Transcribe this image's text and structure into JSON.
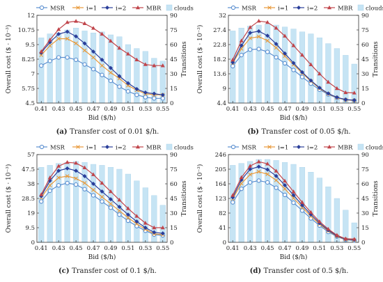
{
  "figure": {
    "series_styles": [
      {
        "key": "MSR",
        "color": "#5b8fd0",
        "marker": "circle-open"
      },
      {
        "key": "i=1",
        "color": "#e8993a",
        "marker": "cross"
      },
      {
        "key": "i=2",
        "color": "#2a3e9a",
        "marker": "diamond"
      },
      {
        "key": "MBR",
        "color": "#c0444a",
        "marker": "triangle"
      },
      {
        "key": "clouds",
        "color": "#bfe0f2",
        "marker": "bar"
      }
    ],
    "bar_color": "#c6e4f4",
    "bar_stroke": "#a9d2ea"
  },
  "chart_data": [
    {
      "id": "a",
      "type": "line",
      "caption_label": "(a)",
      "caption_text": "Transfer cost of 0.01 $/h.",
      "xlabel": "Bid ($/h)",
      "ylabel": "Overall cost ($ · 10⁻³)",
      "y2label": "Transitions",
      "x_ticks": [
        "0.41",
        "0.43",
        "0.45",
        "0.47",
        "0.49",
        "0.51",
        "0.53",
        "0.55"
      ],
      "ylim": [
        4.5,
        12
      ],
      "y_ticks": [
        "4.5",
        "5.75",
        "7",
        "8.25",
        "9.5",
        "10.75",
        "12"
      ],
      "y2lim": [
        0,
        90
      ],
      "y2_ticks": [
        "0",
        "15",
        "30",
        "45",
        "60",
        "75",
        "90"
      ],
      "x": [
        0.41,
        0.42,
        0.43,
        0.44,
        0.45,
        0.46,
        0.47,
        0.48,
        0.49,
        0.5,
        0.51,
        0.52,
        0.53,
        0.54,
        0.55
      ],
      "series": [
        {
          "name": "MSR",
          "values": [
            7.7,
            8.1,
            8.4,
            8.4,
            8.2,
            7.8,
            7.4,
            6.9,
            6.4,
            5.9,
            5.5,
            5.2,
            5.0,
            4.9,
            4.9
          ]
        },
        {
          "name": "i=1",
          "values": [
            8.6,
            9.4,
            10.0,
            10.0,
            9.6,
            9.0,
            8.4,
            7.7,
            7.1,
            6.6,
            6.0,
            5.6,
            5.3,
            5.2,
            5.2
          ]
        },
        {
          "name": "i=2",
          "values": [
            8.8,
            9.7,
            10.4,
            10.6,
            10.2,
            9.6,
            8.9,
            8.2,
            7.5,
            6.8,
            6.2,
            5.7,
            5.4,
            5.3,
            5.2
          ]
        },
        {
          "name": "MBR",
          "values": [
            8.9,
            9.9,
            10.8,
            11.4,
            11.5,
            11.3,
            10.9,
            10.4,
            9.8,
            9.2,
            8.7,
            8.2,
            7.8,
            7.7,
            7.7
          ]
        }
      ],
      "bars": {
        "name": "clouds",
        "values": [
          67,
          71,
          72,
          75,
          77,
          74,
          72,
          73,
          70,
          68,
          60,
          56,
          53,
          46,
          43
        ]
      }
    },
    {
      "id": "b",
      "type": "line",
      "caption_label": "(b)",
      "caption_text": "Transfer cost of 0.05 $/h.",
      "xlabel": "Bid ($/h)",
      "ylabel": "Overall cost ($ · 10⁻³)",
      "y2label": "Transitions",
      "x_ticks": [
        "0.41",
        "0.43",
        "0.45",
        "0.47",
        "0.49",
        "0.51",
        "0.53",
        "0.55"
      ],
      "ylim": [
        4.4,
        32
      ],
      "y_ticks": [
        "4.4",
        "9",
        "13.6",
        "18.2",
        "22.8",
        "27.4",
        "32"
      ],
      "y2lim": [
        0,
        90
      ],
      "y2_ticks": [
        "0",
        "15",
        "30",
        "45",
        "60",
        "75",
        "90"
      ],
      "x": [
        0.41,
        0.42,
        0.43,
        0.44,
        0.45,
        0.46,
        0.47,
        0.48,
        0.49,
        0.5,
        0.51,
        0.52,
        0.53,
        0.54,
        0.55
      ],
      "series": [
        {
          "name": "MSR",
          "values": [
            16.0,
            19.5,
            21.2,
            21.4,
            20.5,
            18.8,
            16.9,
            14.8,
            12.6,
            10.5,
            8.6,
            7.1,
            6.0,
            5.4,
            5.2
          ]
        },
        {
          "name": "i=1",
          "values": [
            17.0,
            21.5,
            24.8,
            25.3,
            24.0,
            21.8,
            19.2,
            16.5,
            13.8,
            11.3,
            9.0,
            7.3,
            6.1,
            5.4,
            5.2
          ]
        },
        {
          "name": "i=2",
          "values": [
            17.2,
            22.5,
            26.5,
            27.0,
            25.6,
            23.0,
            20.0,
            17.0,
            14.1,
            11.5,
            9.2,
            7.4,
            6.2,
            5.5,
            5.3
          ]
        },
        {
          "name": "MBR",
          "values": [
            18.0,
            24.0,
            28.2,
            30.2,
            29.8,
            28.0,
            25.5,
            22.5,
            19.5,
            16.5,
            13.6,
            11.0,
            9.0,
            7.7,
            7.6
          ]
        }
      ],
      "bars": {
        "name": "clouds",
        "values": [
          74,
          77,
          79,
          80,
          81,
          80,
          78,
          76,
          73,
          71,
          67,
          61,
          56,
          49,
          40
        ]
      }
    },
    {
      "id": "c",
      "type": "line",
      "caption_label": "(c)",
      "caption_text": "Transfer cost of 0.1 $/h.",
      "xlabel": "Bid ($/h)",
      "ylabel": "Overall cost ($ · 10⁻³)",
      "y2label": "Transitions",
      "x_ticks": [
        "0.41",
        "0.43",
        "0.45",
        "0.47",
        "0.49",
        "0.51",
        "0.53",
        "0.55"
      ],
      "ylim": [
        0,
        57
      ],
      "y_ticks": [
        "0",
        "9.5",
        "19",
        "28.5",
        "38",
        "47.5",
        "57"
      ],
      "y2lim": [
        0,
        90
      ],
      "y2_ticks": [
        "0",
        "15",
        "30",
        "45",
        "60",
        "75",
        "90"
      ],
      "x": [
        0.41,
        0.42,
        0.43,
        0.44,
        0.45,
        0.46,
        0.47,
        0.48,
        0.49,
        0.5,
        0.51,
        0.52,
        0.53,
        0.54,
        0.55
      ],
      "series": [
        {
          "name": "MSR",
          "values": [
            26.5,
            33.5,
            37.0,
            38.5,
            37.5,
            34.5,
            30.5,
            26.5,
            22.5,
            18.0,
            14.0,
            10.5,
            7.5,
            5.0,
            4.5
          ]
        },
        {
          "name": "i=1",
          "values": [
            29.0,
            37.0,
            42.0,
            43.0,
            41.5,
            38.5,
            34.0,
            29.5,
            25.0,
            20.5,
            16.0,
            12.0,
            8.5,
            5.5,
            5.0
          ]
        },
        {
          "name": "i=2",
          "values": [
            30.0,
            40.0,
            46.5,
            48.0,
            46.5,
            43.0,
            38.0,
            33.0,
            28.0,
            23.0,
            18.0,
            13.5,
            9.5,
            6.5,
            5.8
          ]
        },
        {
          "name": "MBR",
          "values": [
            31.0,
            42.0,
            49.5,
            52.0,
            51.5,
            48.5,
            44.0,
            38.5,
            33.0,
            27.5,
            22.0,
            17.0,
            12.5,
            9.5,
            9.5
          ]
        }
      ],
      "bars": {
        "name": "clouds",
        "values": [
          77,
          79,
          81,
          82,
          83,
          82,
          80,
          79,
          77,
          75,
          70,
          63,
          56,
          48,
          38
        ]
      }
    },
    {
      "id": "d",
      "type": "line",
      "caption_label": "(d)",
      "caption_text": "Transfer cost of 0.5 $/h.",
      "xlabel": "Bid ($/h)",
      "ylabel": "Overall cost ($ · 10⁻³)",
      "y2label": "Transitions",
      "x_ticks": [
        "0.41",
        "0.43",
        "0.45",
        "0.47",
        "0.49",
        "0.51",
        "0.53",
        "0.55"
      ],
      "ylim": [
        0,
        246
      ],
      "y_ticks": [
        "0",
        "41",
        "82",
        "123",
        "164",
        "205",
        "246"
      ],
      "y2lim": [
        0,
        90
      ],
      "y2_ticks": [
        "0",
        "15",
        "30",
        "45",
        "60",
        "75",
        "90"
      ],
      "x": [
        0.41,
        0.42,
        0.43,
        0.44,
        0.45,
        0.46,
        0.47,
        0.48,
        0.49,
        0.5,
        0.51,
        0.52,
        0.53,
        0.54,
        0.55
      ],
      "series": [
        {
          "name": "MSR",
          "values": [
            112,
            150,
            168,
            173,
            168,
            153,
            133,
            111,
            89,
            67,
            47,
            29,
            16,
            7,
            5
          ]
        },
        {
          "name": "i=1",
          "values": [
            122,
            165,
            190,
            198,
            191,
            174,
            150,
            124,
            98,
            73,
            51,
            32,
            17,
            8,
            6
          ]
        },
        {
          "name": "i=2",
          "values": [
            126,
            175,
            205,
            212,
            204,
            186,
            160,
            132,
            104,
            78,
            54,
            34,
            18,
            9,
            7
          ]
        },
        {
          "name": "MBR",
          "values": [
            132,
            182,
            214,
            226,
            220,
            200,
            172,
            142,
            112,
            84,
            58,
            37,
            20,
            10,
            9
          ]
        }
      ],
      "bars": {
        "name": "clouds",
        "values": [
          79,
          81,
          83,
          85,
          85,
          84,
          82,
          80,
          77,
          72,
          66,
          57,
          45,
          33,
          20
        ]
      }
    }
  ],
  "legend": {
    "items": [
      "MSR",
      "i=1",
      "i=2",
      "MBR",
      "clouds"
    ]
  }
}
